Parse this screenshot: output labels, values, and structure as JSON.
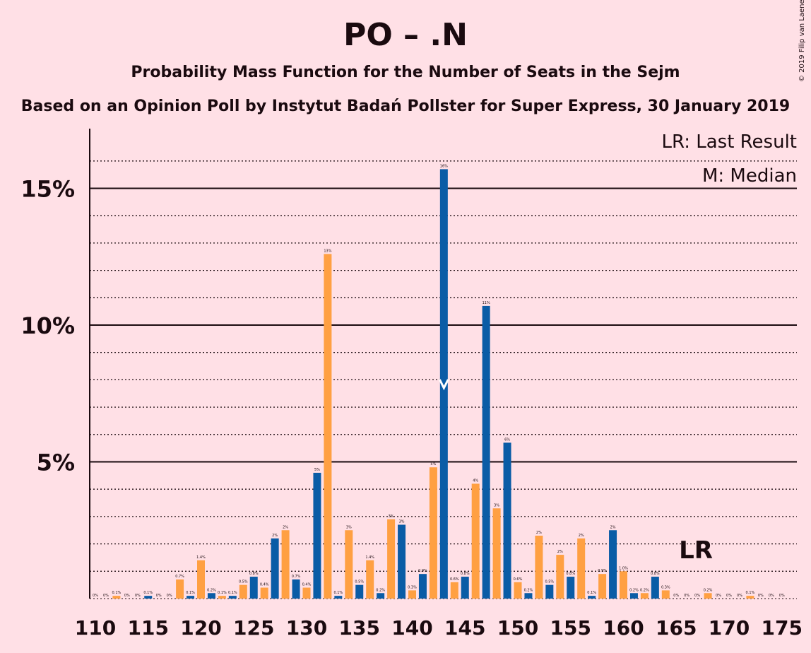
{
  "title": "PO – .N",
  "subtitle": "Probability Mass Function for the Number of Seats in the Sejm",
  "subtitle2": "Based on an Opinion Poll by Instytut Badań Pollster for Super Express, 30 January 2019",
  "copyright": "© 2019 Filip van Laenen",
  "legend": {
    "lr": "LR: Last Result",
    "m": "M: Median"
  },
  "lr_marker": "LR",
  "colors": {
    "blue": "#0a5ca6",
    "orange": "#ffa042",
    "background": "#ffe0e6",
    "text": "#1a0a0f"
  },
  "chart_data": {
    "type": "bar",
    "x": [
      110,
      111,
      112,
      113,
      114,
      115,
      116,
      117,
      118,
      119,
      120,
      121,
      122,
      123,
      124,
      125,
      126,
      127,
      128,
      129,
      130,
      131,
      132,
      133,
      134,
      135,
      136,
      137,
      138,
      139,
      140,
      141,
      142,
      143,
      144,
      145,
      146,
      147,
      148,
      149,
      150,
      151,
      152,
      153,
      154,
      155,
      156,
      157,
      158,
      159,
      160,
      161,
      162,
      163,
      164,
      165,
      166,
      167,
      168,
      169,
      170,
      171,
      172,
      173,
      174,
      175
    ],
    "values": [
      0.0,
      0.0,
      0.1,
      0.0,
      0.0,
      0.1,
      0.0,
      0.0,
      0.7,
      0.1,
      1.4,
      0.2,
      0.1,
      0.1,
      0.5,
      0.8,
      0.4,
      2.2,
      2.5,
      0.7,
      0.4,
      4.6,
      12.6,
      0.1,
      2.5,
      0.5,
      1.4,
      0.2,
      2.9,
      2.7,
      0.3,
      0.9,
      4.8,
      15.7,
      0.6,
      0.8,
      4.2,
      10.7,
      3.3,
      5.7,
      0.6,
      0.2,
      2.3,
      0.5,
      1.6,
      0.8,
      2.2,
      0.1,
      0.9,
      2.5,
      1.0,
      0.2,
      0.2,
      0.8,
      0.3,
      0.0,
      0.0,
      0.0,
      0.2,
      0.0,
      0.0,
      0.0,
      0.1,
      0.0,
      0.0,
      0.0
    ],
    "labels": [
      "0%",
      "0%",
      "0.1%",
      "0%",
      "0%",
      "0.1%",
      "0%",
      "0%",
      "0.7%",
      "0.1%",
      "1.4%",
      "0.2%",
      "0.1%",
      "0.1%",
      "0.5%",
      "0.8%",
      "0.4%",
      "2%",
      "2%",
      "0.7%",
      "0.4%",
      "5%",
      "13%",
      "0.1%",
      "3%",
      "0.5%",
      "1.4%",
      "0.2%",
      "3%",
      "3%",
      "0.3%",
      "0.9%",
      "5%",
      "16%",
      "0.6%",
      "0.8%",
      "4%",
      "11%",
      "3%",
      "6%",
      "0.6%",
      "0.2%",
      "2%",
      "0.5%",
      "2%",
      "0.8%",
      "2%",
      "0.1%",
      "0.9%",
      "2%",
      "1.0%",
      "0.2%",
      "0.2%",
      "0.8%",
      "0.3%",
      "0%",
      "0%",
      "0%",
      "0.2%",
      "0%",
      "0%",
      "0%",
      "0.1%",
      "0%",
      "0%",
      "0%"
    ],
    "xticks": [
      "110",
      "115",
      "120",
      "125",
      "130",
      "135",
      "140",
      "145",
      "150",
      "155",
      "160",
      "165",
      "170",
      "175"
    ],
    "yticks": [
      "5%",
      "10%",
      "15%"
    ],
    "ylim": [
      0,
      17.3
    ],
    "median": 143,
    "last_result": 166
  }
}
